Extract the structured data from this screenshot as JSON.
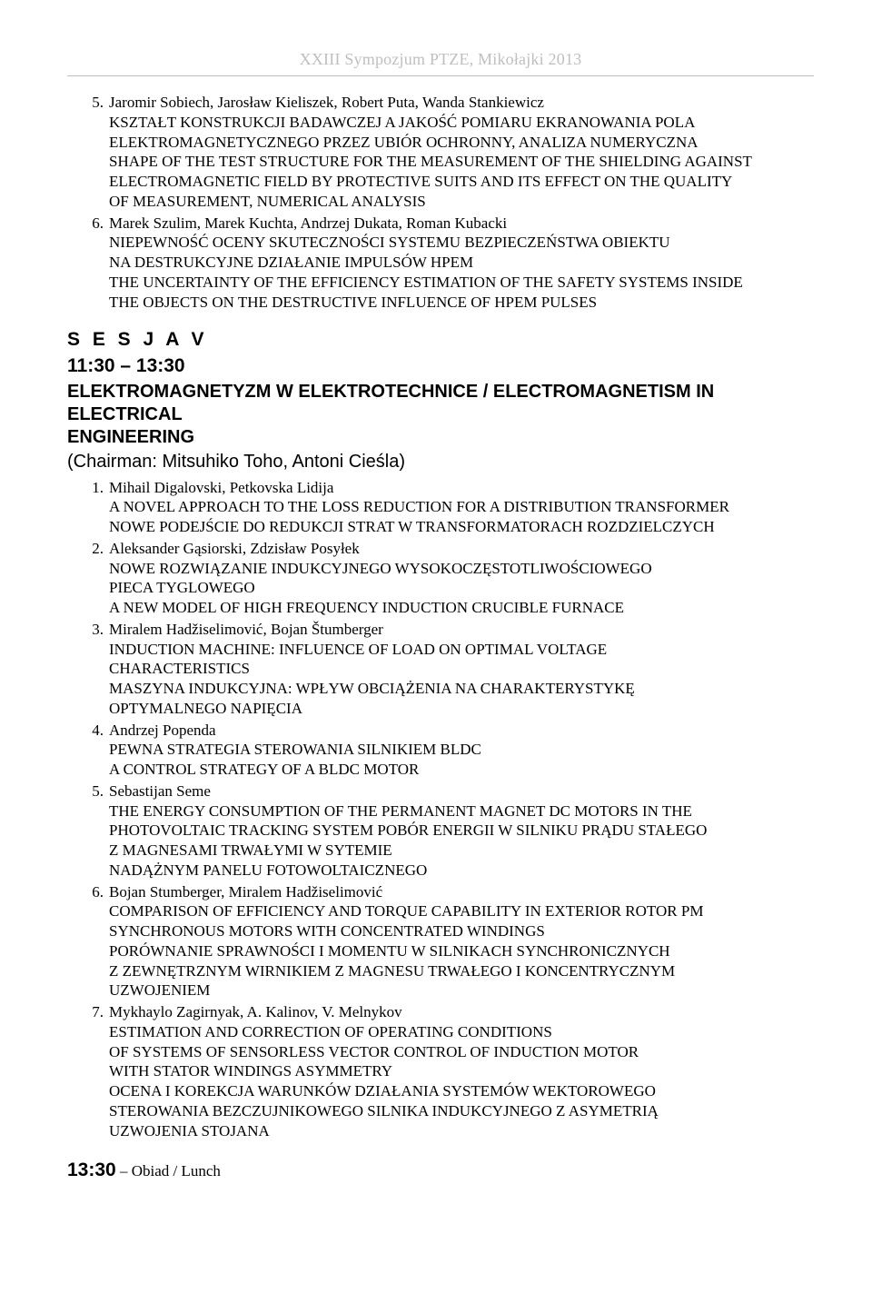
{
  "header": {
    "prefix": "XXIII Sympozjum ",
    "italic": "PTZE, Mikołajki 2013"
  },
  "top_items": [
    {
      "num": "5.",
      "lines": [
        "Jaromir Sobiech, Jarosław Kieliszek, Robert Puta, Wanda Stankiewicz",
        "KSZTAŁT KONSTRUKCJI BADAWCZEJ A JAKOŚĆ POMIARU EKRANOWANIA POLA",
        "ELEKTROMAGNETYCZNEGO PRZEZ UBIÓR OCHRONNY, ANALIZA NUMERYCZNA",
        "SHAPE OF THE TEST STRUCTURE FOR THE MEASUREMENT OF THE SHIELDING AGAINST",
        "ELECTROMAGNETIC FIELD BY PROTECTIVE SUITS AND ITS EFFECT ON THE QUALITY",
        "OF MEASUREMENT, NUMERICAL ANALYSIS"
      ]
    },
    {
      "num": "6.",
      "lines": [
        "Marek Szulim, Marek Kuchta, Andrzej Dukata, Roman Kubacki",
        "NIEPEWNOŚĆ OCENY SKUTECZNOŚCI SYSTEMU BEZPIECZEŃSTWA OBIEKTU",
        "NA DESTRUKCYJNE DZIAŁANIE IMPULSÓW HPEM",
        "THE UNCERTAINTY OF THE EFFICIENCY ESTIMATION OF THE SAFETY SYSTEMS INSIDE",
        "THE OBJECTS ON THE DESTRUCTIVE INFLUENCE OF HPEM PULSES"
      ]
    }
  ],
  "session": {
    "label": "S E S J A  V",
    "time": "11:30 – 13:30",
    "topic_line1": "ELEKTROMAGNETYZM W ELEKTROTECHNICE / ELECTROMAGNETISM IN ELECTRICAL",
    "topic_line2": "ENGINEERING",
    "chair": "(Chairman: Mitsuhiko Toho, Antoni Cieśla)"
  },
  "session_items": [
    {
      "num": "1.",
      "lines": [
        "Mihail Digalovski, Petkovska Lidija",
        " A NOVEL APPROACH TO THE LOSS REDUCTION FOR A DISTRIBUTION TRANSFORMER",
        "NOWE PODEJŚCIE DO REDUKCJI STRAT W TRANSFORMATORACH ROZDZIELCZYCH"
      ]
    },
    {
      "num": "2.",
      "lines": [
        "Aleksander Gąsiorski, Zdzisław Posyłek",
        "NOWE ROZWIĄZANIE INDUKCYJNEGO WYSOKOCZĘSTOTLIWOŚCIOWEGO",
        "PIECA TYGLOWEGO",
        "A NEW MODEL OF HIGH FREQUENCY INDUCTION CRUCIBLE FURNACE"
      ]
    },
    {
      "num": "3.",
      "lines": [
        "Miralem Hadžiselimović, Bojan Štumberger",
        " INDUCTION MACHINE: INFLUENCE OF LOAD ON OPTIMAL VOLTAGE",
        " CHARACTERISTICS",
        "MASZYNA INDUKCYJNA: WPŁYW OBCIĄŻENIA NA CHARAKTERYSTYKĘ",
        "OPTYMALNEGO NAPIĘCIA"
      ]
    },
    {
      "num": "4.",
      "lines": [
        "Andrzej Popenda",
        "PEWNA STRATEGIA STEROWANIA SILNIKIEM BLDC",
        "A CONTROL STRATEGY OF A BLDC MOTOR"
      ]
    },
    {
      "num": "5.",
      "lines": [
        "Sebastijan Seme",
        "THE ENERGY CONSUMPTION OF THE PERMANENT MAGNET DC MOTORS IN THE",
        "PHOTOVOLTAIC TRACKING SYSTEM POBÓR ENERGII W SILNIKU PRĄDU STAŁEGO",
        "Z MAGNESAMI TRWAŁYMI W SYTEMIE",
        "NADĄŻNYM PANELU FOTOWOLTAICZNEGO"
      ]
    },
    {
      "num": "6.",
      "lines": [
        "Bojan Stumberger, Miralem Hadžiselimović",
        "COMPARISON OF EFFICIENCY AND TORQUE CAPABILITY IN EXTERIOR ROTOR PM",
        "SYNCHRONOUS MOTORS WITH CONCENTRATED WINDINGS",
        "PORÓWNANIE SPRAWNOŚCI I MOMENTU W SILNIKACH SYNCHRONICZNYCH",
        "Z ZEWNĘTRZNYM WIRNIKIEM Z MAGNESU TRWAŁEGO I KONCENTRYCZNYM",
        "UZWOJENIEM"
      ]
    },
    {
      "num": "7.",
      "lines": [
        "Mykhaylo  Zagirnyak, A. Kalinov, V. Melnykov",
        "ESTIMATION AND CORRECTION OF OPERATING CONDITIONS",
        "OF SYSTEMS OF SENSORLESS VECTOR CONTROL OF INDUCTION MOTOR",
        "WITH STATOR WINDINGS ASYMMETRY",
        "OCENA I KOREKCJA WARUNKÓW DZIAŁANIA SYSTEMÓW  WEKTOROWEGO",
        "STEROWANIA BEZCZUJNIKOWEGO SILNIKA INDUKCYJNEGO Z ASYMETRIĄ",
        "UZWOJENIA STOJANA"
      ]
    }
  ],
  "footer": {
    "time": "13:30",
    "label": " – Obiad / Lunch"
  }
}
